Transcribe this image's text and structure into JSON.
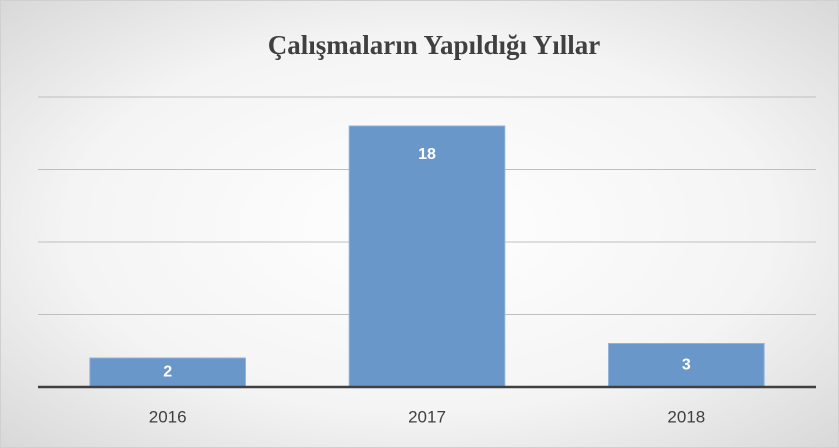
{
  "chart_data": {
    "type": "bar",
    "title": "Çalışmaların Yapıldığı Yıllar",
    "categories": [
      "2016",
      "2017",
      "2018"
    ],
    "values": [
      2,
      18,
      3
    ],
    "color": "#6a97c9",
    "ylim": [
      0,
      20
    ],
    "yticks": [
      0,
      5,
      10,
      15,
      20
    ],
    "grid": true
  }
}
